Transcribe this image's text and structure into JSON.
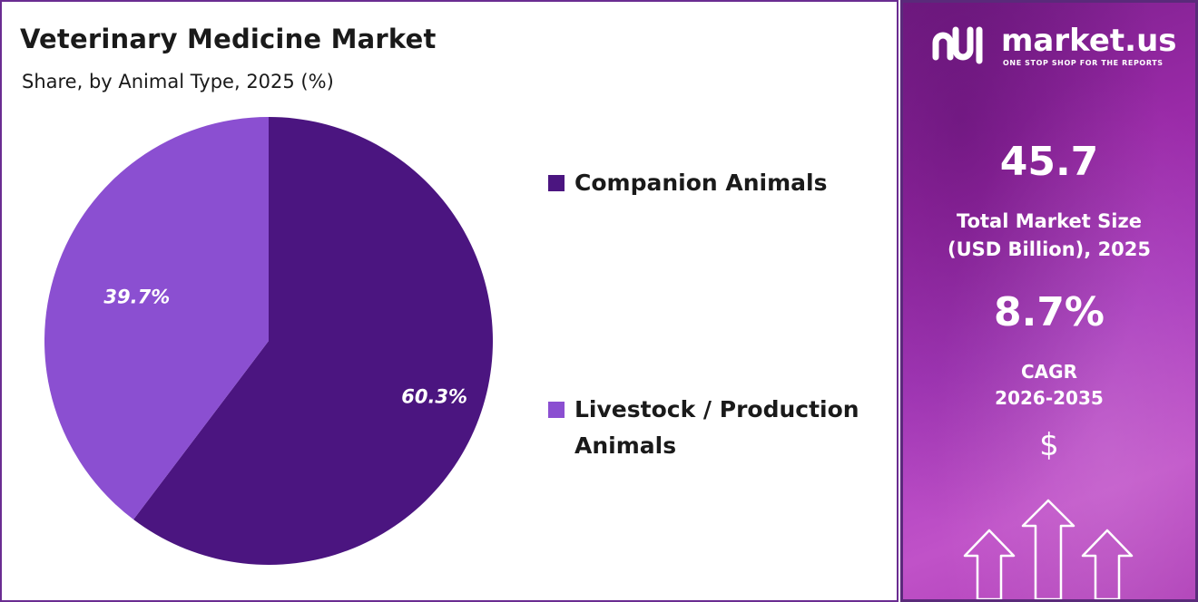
{
  "header": {
    "title": "Veterinary Medicine Market",
    "subtitle": "Share, by Animal Type, 2025 (%)"
  },
  "chart_data": {
    "type": "pie",
    "title": "Veterinary Medicine Market",
    "subtitle": "Share, by Animal Type, 2025 (%)",
    "categories": [
      "Companion Animals",
      "Livestock / Production Animals"
    ],
    "values": [
      60.3,
      39.7
    ],
    "labels": [
      "60.3%",
      "39.7%"
    ],
    "colors": [
      "#4b1580",
      "#8b4fd1"
    ],
    "legend_position": "right"
  },
  "legend": {
    "items": [
      {
        "label": "Companion Animals",
        "color": "#4b1580"
      },
      {
        "label": "Livestock / Production Animals",
        "color": "#8b4fd1"
      }
    ]
  },
  "brand": {
    "name": "market.us",
    "tagline": "ONE STOP SHOP FOR THE REPORTS",
    "icon": "market-us-logo-icon"
  },
  "stats": {
    "market_size_value": "45.7",
    "market_size_label_line1": "Total Market Size",
    "market_size_label_line2": "(USD Billion), 2025",
    "cagr_value": "8.7%",
    "cagr_label_line1": "CAGR",
    "cagr_label_line2": "2026-2035",
    "currency_symbol": "$"
  },
  "colors": {
    "border": "#6a2c91",
    "panel_gradient_start": "#7a1f8a",
    "panel_gradient_end": "#c052c8"
  }
}
